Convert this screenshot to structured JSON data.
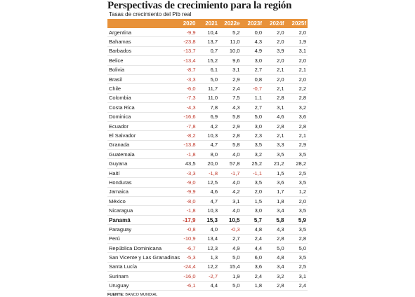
{
  "title": "Perspectivas de crecimiento para la región",
  "subtitle": "Tasas de crecimiento del Pib real",
  "headers": [
    "",
    "2020",
    "2021",
    "2022e",
    "2023f",
    "2024f",
    "2025f"
  ],
  "rows": [
    {
      "country": "Argentina",
      "values": [
        "-9,9",
        "10,4",
        "5,2",
        "0,0",
        "2,0",
        "2,0"
      ]
    },
    {
      "country": "Bahamas",
      "values": [
        "-23,8",
        "13,7",
        "11,0",
        "4,3",
        "2,0",
        "1,9"
      ]
    },
    {
      "country": "Barbados",
      "values": [
        "-13,7",
        "0,7",
        "10,0",
        "4,9",
        "3,9",
        "3,1"
      ]
    },
    {
      "country": "Belice",
      "values": [
        "-13,4",
        "15,2",
        "9,6",
        "3,0",
        "2,0",
        "2,0"
      ]
    },
    {
      "country": "Bolivia",
      "values": [
        "-8,7",
        "6,1",
        "3,1",
        "2,7",
        "2,1",
        "2,1"
      ]
    },
    {
      "country": "Brasil",
      "values": [
        "-3,3",
        "5,0",
        "2,9",
        "0,8",
        "2,0",
        "2,0"
      ]
    },
    {
      "country": "Chile",
      "values": [
        "-6,0",
        "11,7",
        "2,4",
        "-0,7",
        "2,1",
        "2,2"
      ]
    },
    {
      "country": "Colombia",
      "values": [
        "-7,3",
        "11,0",
        "7,5",
        "1,1",
        "2,8",
        "2,8"
      ]
    },
    {
      "country": "Costa Rica",
      "values": [
        "-4,3",
        "7,8",
        "4,3",
        "2,7",
        "3,1",
        "3,2"
      ]
    },
    {
      "country": "Dominica",
      "values": [
        "-16,6",
        "6,9",
        "5,8",
        "5,0",
        "4,6",
        "3,6"
      ]
    },
    {
      "country": "Ecuador",
      "values": [
        "-7,8",
        "4,2",
        "2,9",
        "3,0",
        "2,8",
        "2,8"
      ]
    },
    {
      "country": "El Salvador",
      "values": [
        "-8,2",
        "10,3",
        "2,8",
        "2,3",
        "2,1",
        "2,1"
      ]
    },
    {
      "country": "Granada",
      "values": [
        "-13,8",
        "4,7",
        "5,8",
        "3,5",
        "3,3",
        "2,9"
      ]
    },
    {
      "country": "Guatemala",
      "values": [
        "-1,8",
        "8,0",
        "4,0",
        "3,2",
        "3,5",
        "3,5"
      ]
    },
    {
      "country": "Guyana",
      "values": [
        "43,5",
        "20,0",
        "57,8",
        "25,2",
        "21,2",
        "28,2"
      ]
    },
    {
      "country": "Haití",
      "values": [
        "-3,3",
        "-1,8",
        "-1,7",
        "-1,1",
        "1,5",
        "2,5"
      ]
    },
    {
      "country": "Honduras",
      "values": [
        "-9,0",
        "12,5",
        "4,0",
        "3,5",
        "3,6",
        "3,5"
      ]
    },
    {
      "country": "Jamaica",
      "values": [
        "-9,9",
        "4,6",
        "4,2",
        "2,0",
        "1,7",
        "1,2"
      ]
    },
    {
      "country": "México",
      "values": [
        "-8,0",
        "4,7",
        "3,1",
        "1,5",
        "1,8",
        "2,0"
      ]
    },
    {
      "country": "Nicaragua",
      "values": [
        "-1,8",
        "10,3",
        "4,0",
        "3,0",
        "3,4",
        "3,5"
      ]
    },
    {
      "country": "Panamá",
      "values": [
        "-17,9",
        "15,3",
        "10,5",
        "5,7",
        "5,8",
        "5,9"
      ],
      "bold": true
    },
    {
      "country": "Paraguay",
      "values": [
        "-0,8",
        "4,0",
        "-0,3",
        "4,8",
        "4,3",
        "3,5"
      ]
    },
    {
      "country": "Perú",
      "values": [
        "-10,9",
        "13,4",
        "2,7",
        "2,4",
        "2,8",
        "2,8"
      ]
    },
    {
      "country": "República Dominicana",
      "values": [
        "-6,7",
        "12,3",
        "4,9",
        "4,4",
        "5,0",
        "5,0"
      ]
    },
    {
      "country": "San Vicente y Las Granadinas",
      "values": [
        "-5,3",
        "1,3",
        "5,0",
        "6,0",
        "4,8",
        "3,5"
      ]
    },
    {
      "country": "Santa Lucía",
      "values": [
        "-24,4",
        "12,2",
        "15,4",
        "3,6",
        "3,4",
        "2,5"
      ]
    },
    {
      "country": "Surinam",
      "values": [
        "-16,0",
        "-2,7",
        "1,9",
        "2,4",
        "3,2",
        "3,1"
      ]
    },
    {
      "country": "Uruguay",
      "values": [
        "-6,1",
        "4,4",
        "5,0",
        "1,8",
        "2,8",
        "2,4"
      ]
    }
  ],
  "source_label": "FUENTE:",
  "source_text": "BANCO MUNDIAL",
  "colors": {
    "header_bg": "#e8923a",
    "negative": "#c0392b"
  }
}
